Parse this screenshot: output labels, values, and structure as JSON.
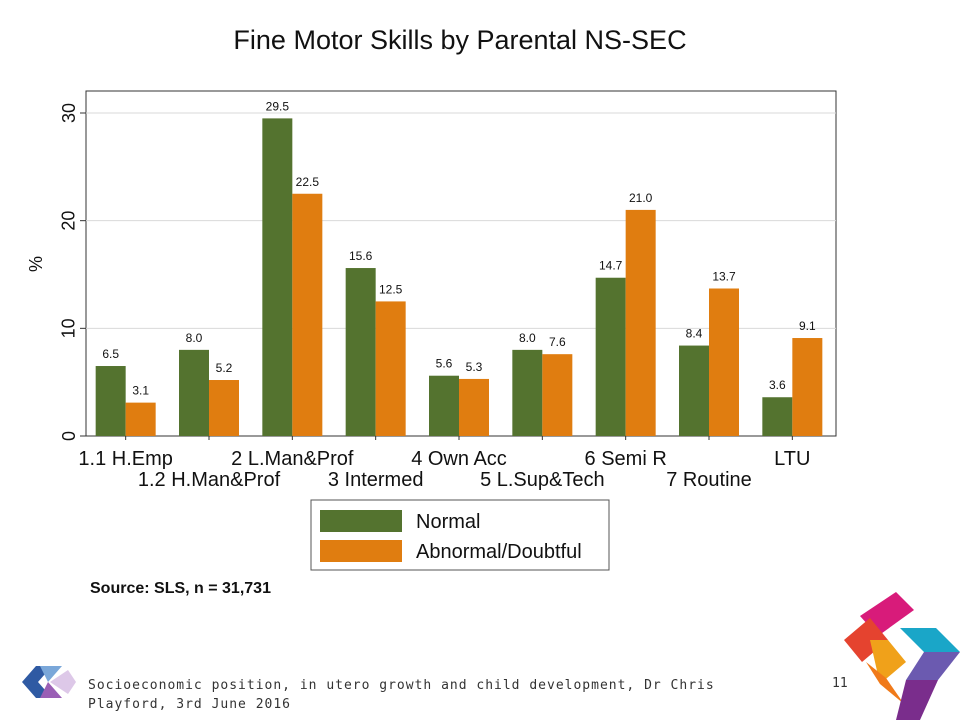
{
  "slide": {
    "source": "Source: SLS, n = 31,731",
    "footer": "Socioeconomic position, in utero growth and child development, Dr Chris Playford, 3rd June 2016",
    "page_number": "11"
  },
  "chart_data": {
    "type": "bar",
    "title": "Fine Motor Skills by Parental NS-SEC",
    "ylabel": "%",
    "xlabel": "",
    "ylim": [
      0,
      30
    ],
    "yticks": [
      0,
      10,
      20,
      30
    ],
    "grid": true,
    "legend_position": "bottom-center",
    "categories": [
      "1.1 H.Emp",
      "1.2 H.Man&Prof",
      "2 L.Man&Prof",
      "3 Intermed",
      "4 Own Acc",
      "5 L.Sup&Tech",
      "6 Semi R",
      "7 Routine",
      "LTU"
    ],
    "series": [
      {
        "name": "Normal",
        "color": "#54732f",
        "values": [
          6.5,
          8.0,
          29.5,
          15.6,
          5.6,
          8.0,
          14.7,
          8.4,
          3.6
        ]
      },
      {
        "name": "Abnormal/Doubtful",
        "color": "#e07d10",
        "values": [
          3.1,
          5.2,
          22.5,
          12.5,
          5.3,
          7.6,
          21.0,
          13.7,
          9.1
        ]
      }
    ],
    "value_labels": [
      [
        "6.5",
        "8.0",
        "29.5",
        "15.6",
        "5.6",
        "8.0",
        "14.7",
        "8.4",
        "3.6"
      ],
      [
        "3.1",
        "5.2",
        "22.5",
        "12.5",
        "5.3",
        "7.6",
        "21.0",
        "13.7",
        "9.1"
      ]
    ]
  }
}
